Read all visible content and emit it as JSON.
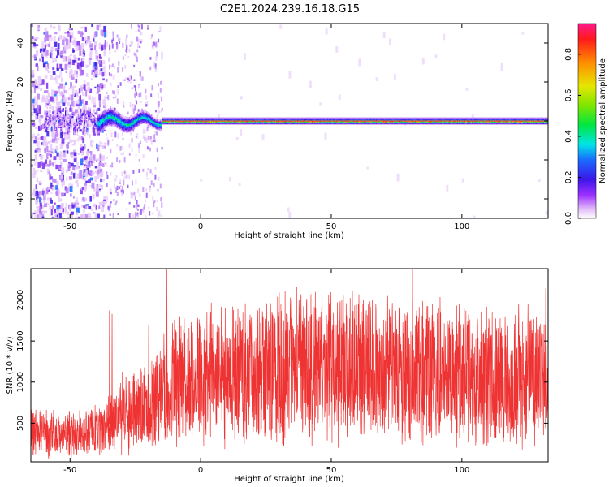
{
  "title": "C2E1.2024.239.16.18.G15",
  "colors": {
    "snr_line": "#ef3333",
    "frame": "#000000",
    "background": "#ffffff"
  },
  "chart_data": [
    {
      "type": "heatmap",
      "xlabel": "Height of straight line (km)",
      "ylabel": "Frequency (Hz)",
      "xlim": [
        -65,
        133
      ],
      "ylim": [
        -50,
        50
      ],
      "xticks": [
        "-50",
        "0",
        "50",
        "100"
      ],
      "yticks": [
        "-40",
        "-20",
        "0",
        "20",
        "40"
      ],
      "colorbar": {
        "label": "Normalized spectral amplitude",
        "range": [
          0.0,
          0.95
        ],
        "ticks": [
          "0.0",
          "0.2",
          "0.4",
          "0.6",
          "0.8"
        ]
      },
      "description_series": {
        "noise_region_x": [
          -65,
          -37
        ],
        "transition_region_x": [
          -37,
          -15
        ],
        "stable_signal_x": [
          -15,
          133
        ],
        "signal_frequency": 0
      }
    },
    {
      "type": "line",
      "xlabel": "Height of straight line (km)",
      "ylabel": "SNR (10 * v/v)",
      "xlim": [
        -65,
        133
      ],
      "ylim": [
        30,
        2380
      ],
      "xticks": [
        "-50",
        "0",
        "50",
        "100"
      ],
      "yticks": [
        "500",
        "1000",
        "1500",
        "2000"
      ],
      "trend": {
        "x": [
          -65,
          -50,
          -38,
          -30,
          -20,
          -15,
          -10,
          0,
          20,
          40,
          60,
          80,
          100,
          120,
          133
        ],
        "y": [
          380,
          360,
          420,
          620,
          700,
          850,
          1000,
          1080,
          1150,
          1200,
          1180,
          1150,
          1100,
          1080,
          1100
        ]
      },
      "spikes": [
        {
          "x": -35,
          "y": 1870
        },
        {
          "x": -34,
          "y": 1830
        },
        {
          "x": -13,
          "y": 2380
        },
        {
          "x": -20,
          "y": 1690
        },
        {
          "x": 30,
          "y": 2090
        },
        {
          "x": 81,
          "y": 2380
        },
        {
          "x": 58,
          "y": 2110
        },
        {
          "x": 132,
          "y": 2140
        }
      ]
    }
  ]
}
